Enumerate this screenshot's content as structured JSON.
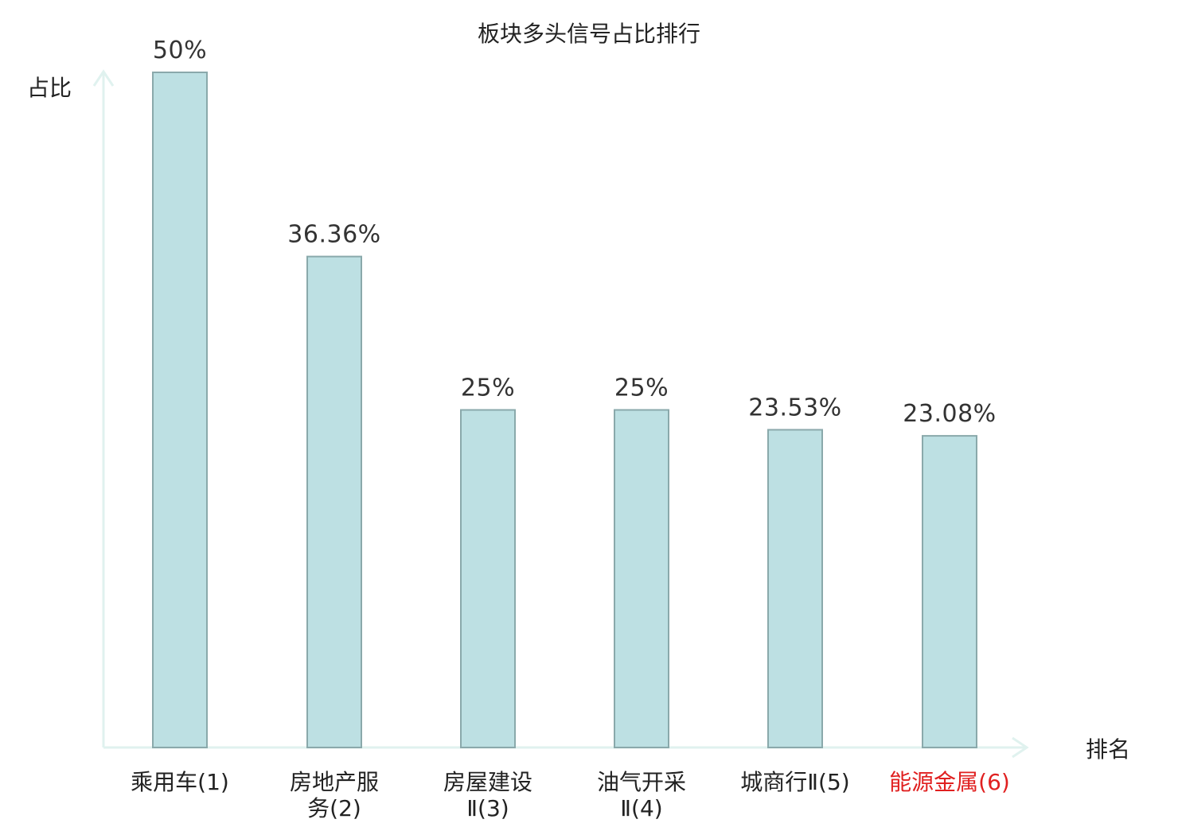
{
  "chart_data": {
    "type": "bar",
    "title": "板块多头信号占比排行",
    "ylabel": "占比",
    "xlabel": "排名",
    "ylim": [
      0,
      50
    ],
    "grid": false,
    "categories": [
      {
        "name": "乘用车",
        "rank": "(1)",
        "lines": [
          "乘用车(1)"
        ],
        "highlight": false
      },
      {
        "name": "房地产服务",
        "rank": "(2)",
        "lines": [
          "房地产服",
          "务(2)"
        ],
        "highlight": false
      },
      {
        "name": "房屋建设Ⅱ",
        "rank": "(3)",
        "lines": [
          "房屋建设",
          "Ⅱ(3)"
        ],
        "highlight": false
      },
      {
        "name": "油气开采Ⅱ",
        "rank": "(4)",
        "lines": [
          "油气开采",
          "Ⅱ(4)"
        ],
        "highlight": false
      },
      {
        "name": "城商行Ⅱ",
        "rank": "(5)",
        "lines": [
          "城商行Ⅱ(5)"
        ],
        "highlight": false
      },
      {
        "name": "能源金属",
        "rank": "(6)",
        "lines": [
          "能源金属(6)"
        ],
        "highlight": true
      }
    ],
    "values": [
      50,
      36.36,
      25,
      25,
      23.53,
      23.08
    ],
    "value_labels": [
      "50%",
      "36.36%",
      "25%",
      "25%",
      "23.53%",
      "23.08%"
    ],
    "colors": {
      "bar_fill": "#bde0e3",
      "bar_stroke": "#8aa9ab",
      "axis": "#e0f2ef",
      "highlight_text": "#e02020",
      "normal_text": "#222222"
    }
  }
}
